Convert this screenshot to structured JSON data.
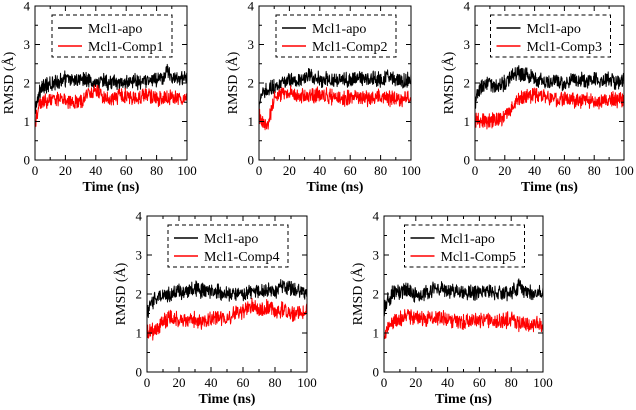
{
  "figure": {
    "panels": 5
  },
  "chart_data": [
    {
      "type": "line",
      "xlabel": "Time (ns)",
      "ylabel": "RMSD (Å)",
      "xlim": [
        0,
        100
      ],
      "ylim": [
        0,
        4
      ],
      "xticks": [
        "0",
        "20",
        "40",
        "60",
        "80",
        "100"
      ],
      "yticks": [
        "0",
        "1",
        "2",
        "3",
        "4"
      ],
      "grid": false,
      "legend": "top (dashed box)",
      "series": [
        {
          "name": "Mcl1-apo",
          "color": "#000000",
          "x": [
            0,
            2,
            5,
            10,
            15,
            20,
            25,
            30,
            35,
            40,
            45,
            50,
            55,
            60,
            65,
            70,
            75,
            80,
            85,
            88,
            90,
            95,
            100
          ],
          "y": [
            1.3,
            1.7,
            1.9,
            1.95,
            2.05,
            2.1,
            2.05,
            2.15,
            2.1,
            2.0,
            2.05,
            2.0,
            2.0,
            2.0,
            2.05,
            2.0,
            2.05,
            2.1,
            2.15,
            2.35,
            2.1,
            2.1,
            2.1
          ]
        },
        {
          "name": "Mcl1-Comp1",
          "color": "#ff0000",
          "x": [
            0,
            2,
            5,
            10,
            15,
            20,
            25,
            30,
            35,
            40,
            45,
            50,
            55,
            60,
            65,
            70,
            75,
            80,
            85,
            90,
            95,
            100
          ],
          "y": [
            0.8,
            1.4,
            1.5,
            1.55,
            1.6,
            1.55,
            1.5,
            1.5,
            1.75,
            1.8,
            1.6,
            1.6,
            1.65,
            1.65,
            1.6,
            1.65,
            1.7,
            1.6,
            1.6,
            1.6,
            1.6,
            1.6
          ]
        }
      ]
    },
    {
      "type": "line",
      "xlabel": "Time (ns)",
      "ylabel": "RMSD (Å)",
      "xlim": [
        0,
        100
      ],
      "ylim": [
        0,
        4
      ],
      "xticks": [
        "0",
        "20",
        "40",
        "60",
        "80",
        "100"
      ],
      "yticks": [
        "0",
        "1",
        "2",
        "3",
        "4"
      ],
      "grid": false,
      "legend": "top (dashed box)",
      "series": [
        {
          "name": "Mcl1-apo",
          "color": "#000000",
          "x": [
            0,
            2,
            5,
            10,
            15,
            20,
            25,
            30,
            35,
            40,
            45,
            50,
            55,
            60,
            65,
            70,
            75,
            80,
            85,
            90,
            95,
            100
          ],
          "y": [
            1.3,
            1.7,
            1.85,
            1.9,
            2.0,
            2.1,
            2.05,
            2.15,
            2.2,
            2.1,
            2.1,
            2.05,
            2.1,
            2.05,
            2.15,
            2.1,
            2.1,
            2.1,
            2.2,
            2.1,
            2.05,
            2.1
          ]
        },
        {
          "name": "Mcl1-Comp2",
          "color": "#ff0000",
          "x": [
            0,
            2,
            4,
            6,
            8,
            10,
            15,
            20,
            25,
            30,
            35,
            40,
            45,
            50,
            55,
            60,
            65,
            70,
            75,
            80,
            85,
            90,
            95,
            100
          ],
          "y": [
            1.2,
            1.0,
            0.9,
            0.95,
            1.3,
            1.6,
            1.7,
            1.75,
            1.7,
            1.65,
            1.65,
            1.7,
            1.65,
            1.65,
            1.6,
            1.6,
            1.65,
            1.6,
            1.6,
            1.65,
            1.6,
            1.6,
            1.6,
            1.65
          ]
        }
      ]
    },
    {
      "type": "line",
      "xlabel": "Time (ns)",
      "ylabel": "RMSD (Å)",
      "xlim": [
        0,
        100
      ],
      "ylim": [
        0,
        4
      ],
      "xticks": [
        "0",
        "20",
        "40",
        "60",
        "80",
        "100"
      ],
      "yticks": [
        "0",
        "1",
        "2",
        "3",
        "4"
      ],
      "grid": false,
      "legend": "top (dashed box)",
      "series": [
        {
          "name": "Mcl1-apo",
          "color": "#000000",
          "x": [
            0,
            2,
            5,
            10,
            15,
            20,
            25,
            30,
            35,
            40,
            45,
            50,
            55,
            60,
            65,
            70,
            75,
            80,
            85,
            90,
            95,
            100
          ],
          "y": [
            1.4,
            1.8,
            1.9,
            1.95,
            1.9,
            2.0,
            2.2,
            2.25,
            2.2,
            2.1,
            2.05,
            2.0,
            2.05,
            2.0,
            2.1,
            2.1,
            2.05,
            2.1,
            2.05,
            2.1,
            2.0,
            2.05
          ]
        },
        {
          "name": "Mcl1-Comp3",
          "color": "#ff0000",
          "x": [
            0,
            2,
            5,
            10,
            15,
            20,
            25,
            30,
            35,
            40,
            45,
            50,
            55,
            60,
            65,
            70,
            75,
            80,
            85,
            90,
            95,
            100
          ],
          "y": [
            1.0,
            1.05,
            1.0,
            1.0,
            1.05,
            1.1,
            1.4,
            1.6,
            1.65,
            1.7,
            1.65,
            1.6,
            1.55,
            1.6,
            1.55,
            1.55,
            1.6,
            1.5,
            1.55,
            1.6,
            1.55,
            1.55
          ]
        }
      ]
    },
    {
      "type": "line",
      "xlabel": "Time (ns)",
      "ylabel": "RMSD (Å)",
      "xlim": [
        0,
        100
      ],
      "ylim": [
        0,
        4
      ],
      "xticks": [
        "0",
        "20",
        "40",
        "60",
        "80",
        "100"
      ],
      "yticks": [
        "0",
        "1",
        "2",
        "3",
        "4"
      ],
      "grid": false,
      "legend": "top (dashed box)",
      "series": [
        {
          "name": "Mcl1-apo",
          "color": "#000000",
          "x": [
            0,
            2,
            5,
            10,
            15,
            20,
            25,
            30,
            35,
            40,
            45,
            50,
            55,
            60,
            65,
            70,
            75,
            80,
            85,
            90,
            95,
            100
          ],
          "y": [
            1.5,
            1.7,
            1.9,
            1.95,
            2.0,
            2.05,
            2.1,
            2.15,
            2.1,
            2.1,
            2.05,
            2.0,
            2.0,
            2.0,
            2.05,
            2.1,
            2.1,
            2.05,
            2.2,
            2.15,
            2.1,
            2.05
          ]
        },
        {
          "name": "Mcl1-Comp4",
          "color": "#ff0000",
          "x": [
            0,
            2,
            5,
            10,
            15,
            20,
            25,
            30,
            35,
            40,
            45,
            50,
            55,
            60,
            65,
            70,
            75,
            80,
            85,
            90,
            95,
            100
          ],
          "y": [
            1.0,
            1.05,
            1.0,
            1.3,
            1.4,
            1.35,
            1.3,
            1.35,
            1.25,
            1.35,
            1.4,
            1.35,
            1.5,
            1.55,
            1.7,
            1.6,
            1.65,
            1.55,
            1.6,
            1.5,
            1.55,
            1.55
          ]
        }
      ]
    },
    {
      "type": "line",
      "xlabel": "Time (ns)",
      "ylabel": "RMSD (Å)",
      "xlim": [
        0,
        100
      ],
      "ylim": [
        0,
        4
      ],
      "xticks": [
        "0",
        "20",
        "40",
        "60",
        "80",
        "100"
      ],
      "yticks": [
        "0",
        "1",
        "2",
        "3",
        "4"
      ],
      "grid": false,
      "legend": "top (dashed box)",
      "series": [
        {
          "name": "Mcl1-apo",
          "color": "#000000",
          "x": [
            0,
            2,
            5,
            10,
            15,
            20,
            25,
            30,
            35,
            40,
            45,
            50,
            55,
            60,
            65,
            70,
            75,
            80,
            85,
            90,
            95,
            100
          ],
          "y": [
            1.6,
            1.8,
            2.0,
            2.05,
            2.1,
            1.95,
            2.0,
            2.1,
            2.15,
            2.1,
            2.05,
            2.0,
            2.05,
            2.05,
            2.1,
            2.05,
            2.0,
            2.05,
            2.2,
            2.05,
            2.0,
            2.05
          ]
        },
        {
          "name": "Mcl1-Comp5",
          "color": "#ff0000",
          "x": [
            0,
            2,
            5,
            10,
            15,
            20,
            25,
            30,
            35,
            40,
            45,
            50,
            55,
            60,
            65,
            70,
            75,
            80,
            85,
            90,
            95,
            100
          ],
          "y": [
            0.9,
            1.1,
            1.25,
            1.35,
            1.45,
            1.4,
            1.35,
            1.35,
            1.4,
            1.35,
            1.3,
            1.3,
            1.35,
            1.3,
            1.35,
            1.3,
            1.3,
            1.35,
            1.25,
            1.2,
            1.25,
            1.2
          ]
        }
      ]
    }
  ]
}
